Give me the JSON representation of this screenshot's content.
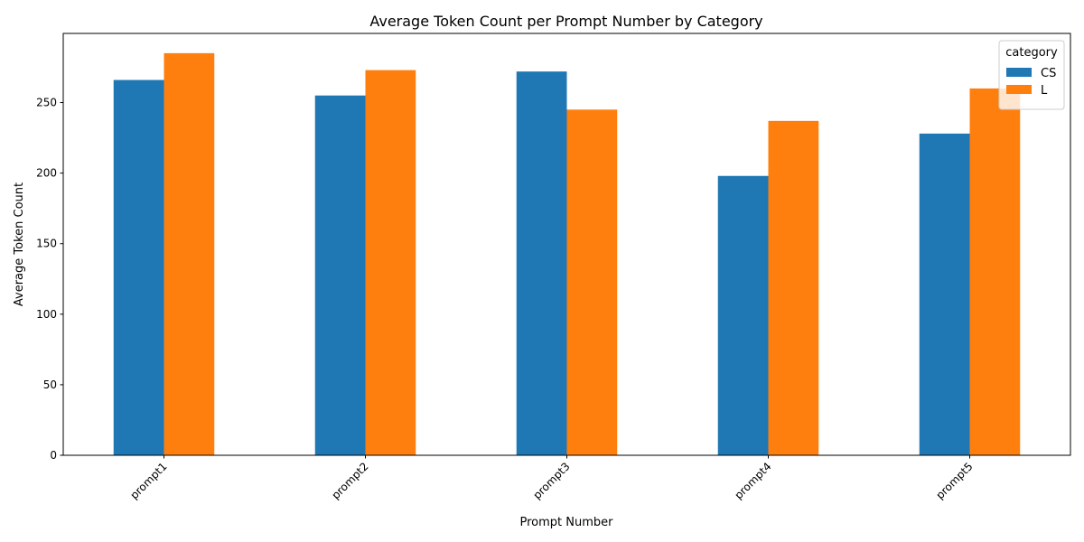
{
  "chart_data": {
    "type": "bar",
    "title": "Average Token Count per Prompt Number by Category",
    "xlabel": "Prompt Number",
    "ylabel": "Average Token Count",
    "categories": [
      "prompt1",
      "prompt2",
      "prompt3",
      "prompt4",
      "prompt5"
    ],
    "series": [
      {
        "name": "CS",
        "color": "#1f77b4",
        "values": [
          266,
          255,
          272,
          198,
          228
        ]
      },
      {
        "name": "L",
        "color": "#ff7f0e",
        "values": [
          285,
          273,
          245,
          237,
          260
        ]
      }
    ],
    "ylim": [
      0,
      299
    ],
    "yticks": [
      0,
      50,
      100,
      150,
      200,
      250
    ],
    "legend": {
      "title": "category",
      "position": "top-right"
    },
    "grid": false,
    "xtick_rotation": 45
  }
}
